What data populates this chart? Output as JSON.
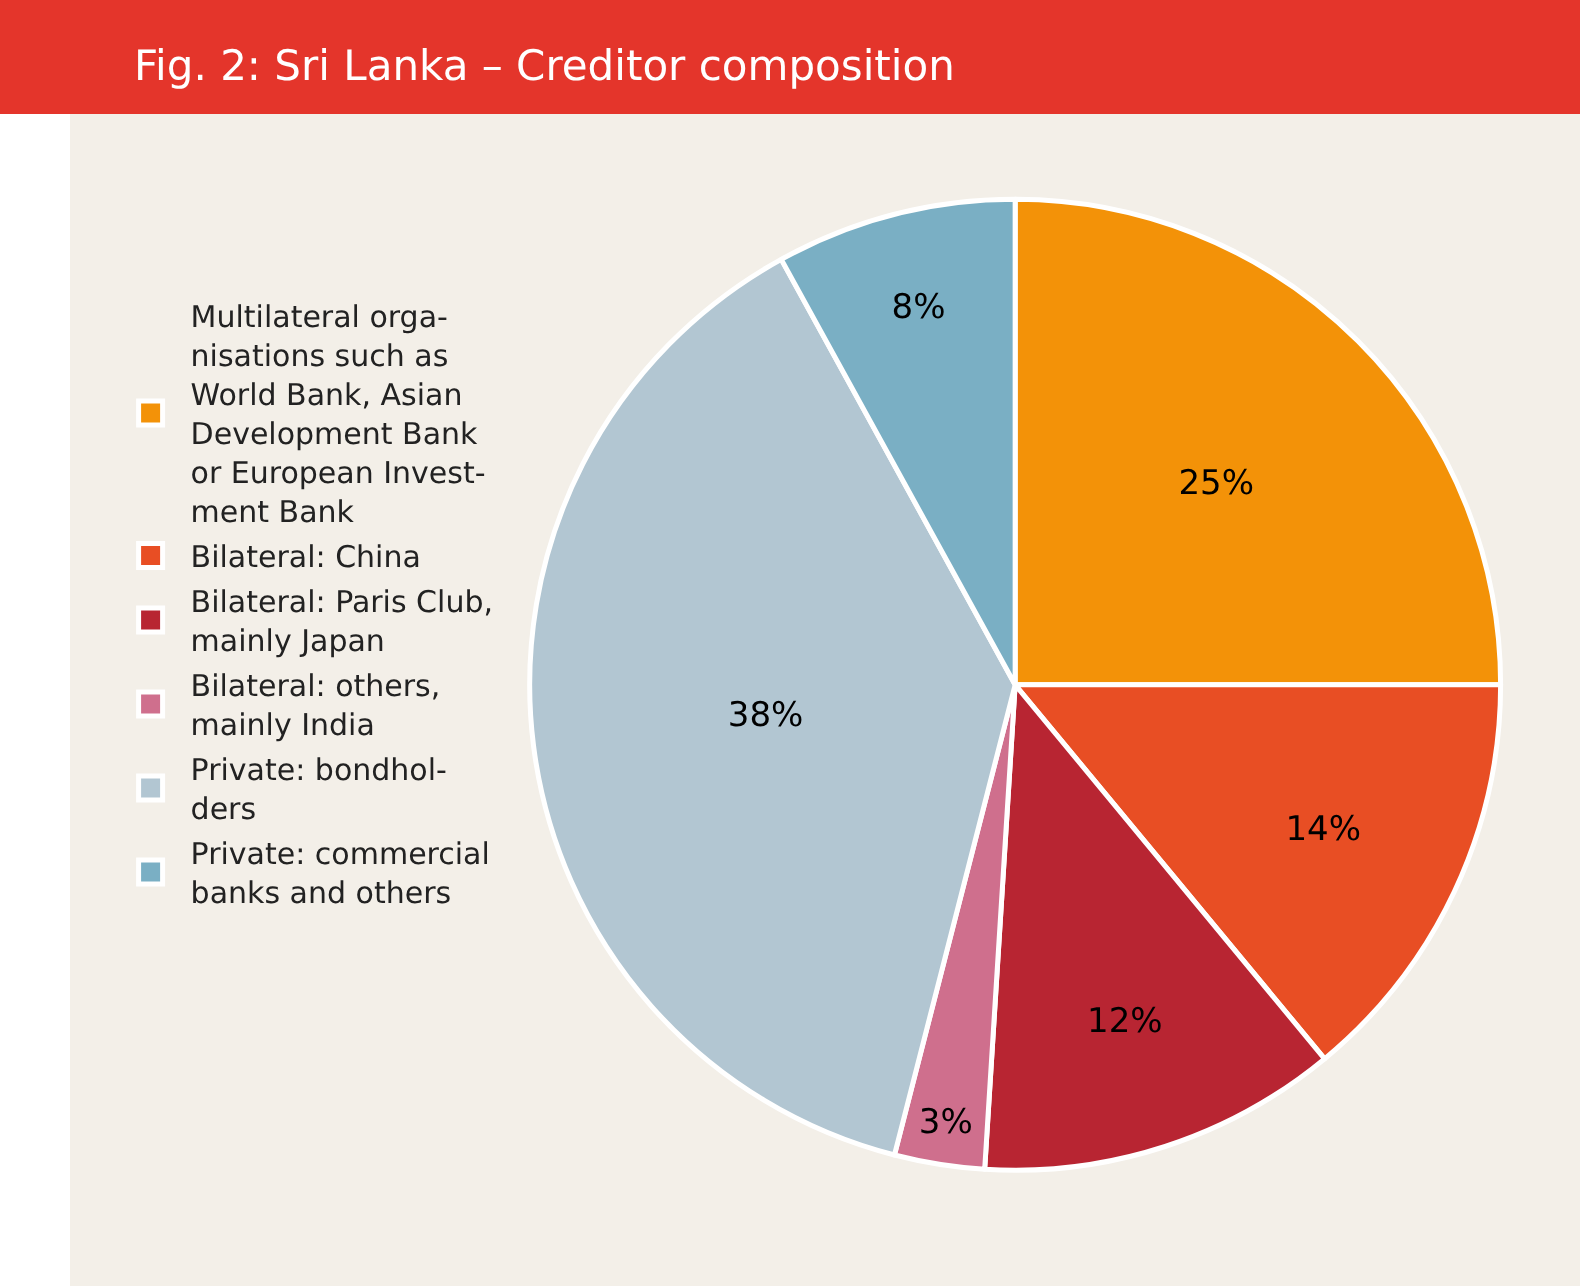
{
  "chart_data": {
    "type": "pie",
    "title": "Fig. 2: Sri Lanka – Creditor composition",
    "categories": [
      "Multilateral orga-\nnisations such as\nWorld Bank, Asian\nDevelopment Bank\nor European Invest-\nment Bank",
      "Bilateral: China",
      "Bilateral: Paris Club,\nmainly Japan",
      "Bilateral: others,\nmainly India",
      "Private: bondhol-\nders",
      "Private: commercial\nbanks and others"
    ],
    "values": [
      25,
      14,
      12,
      3,
      38,
      8
    ],
    "value_labels": [
      "25%",
      "14%",
      "12%",
      "3%",
      "38%",
      "8%"
    ],
    "colors": [
      "#f39208",
      "#e84e24",
      "#b82532",
      "#cf6f8d",
      "#b2c6d2",
      "#7aafc4"
    ],
    "legend": "left"
  }
}
